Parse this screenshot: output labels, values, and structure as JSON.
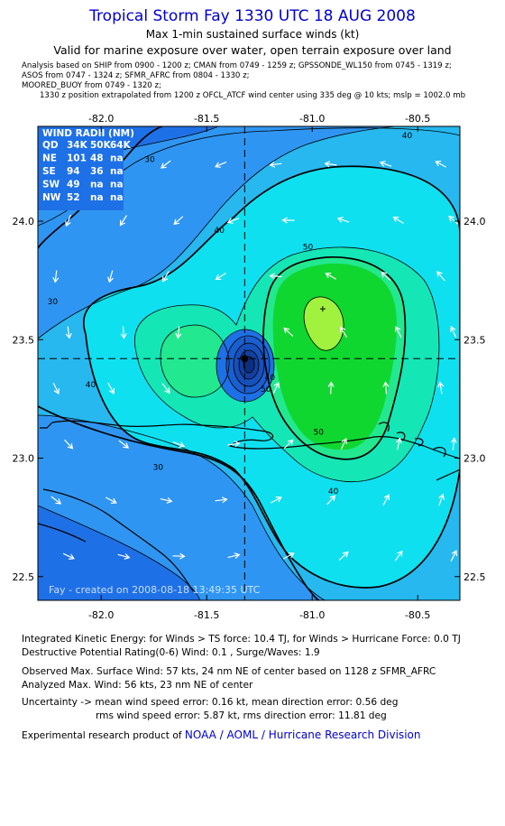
{
  "header": {
    "title": "Tropical Storm Fay 1330 UTC 18 AUG 2008",
    "subtitle": "Max 1-min sustained surface winds (kt)",
    "valid_for": "Valid for marine exposure over water, open terrain exposure over land",
    "analysis_line1": "Analysis based on  SHIP from 0900 - 1200 z;  CMAN from 0749 - 1259 z;  GPSSONDE_WL150 from 0745 - 1319 z;",
    "analysis_line2": "ASOS from 0747 - 1324 z;  SFMR_AFRC from 0804 - 1330 z;",
    "analysis_line3": "MOORED_BUOY from 0749 - 1320 z;",
    "position_note": "1330 z position extrapolated from 1200 z OFCL_ATCF wind center using 335 deg @ 10 kts; mslp = 1002.0 mb"
  },
  "wind_radii": {
    "title": "WIND RADII (NM)",
    "header": [
      "QD",
      "34K",
      "50K",
      "64K"
    ],
    "rows": [
      [
        "NE",
        "101",
        "48",
        "na"
      ],
      [
        "SE",
        "94",
        "36",
        "na"
      ],
      [
        "SW",
        "49",
        "na",
        "na"
      ],
      [
        "NW",
        "52",
        "na",
        "na"
      ]
    ]
  },
  "watermark": "Fay - created on 2008-08-18 13:49:35 UTC",
  "chart_data": {
    "type": "contour",
    "x_ticks": [
      "-82.0",
      "-81.5",
      "-81.0",
      "-80.5"
    ],
    "y_ticks": [
      "24.0",
      "23.5",
      "23.0",
      "22.5"
    ],
    "x_range": [
      -82.3,
      -80.3
    ],
    "y_range": [
      22.4,
      24.4
    ],
    "center": {
      "lon": -81.32,
      "lat": 23.42
    },
    "max_wind_marker": {
      "lon": -80.95,
      "lat": 23.63
    },
    "contour_levels": [
      {
        "label": "30",
        "lon": -81.77,
        "lat": 24.25
      },
      {
        "label": "30",
        "lon": -82.23,
        "lat": 23.65
      },
      {
        "label": "30",
        "lon": -81.73,
        "lat": 22.95
      },
      {
        "label": "40",
        "lon": -81.44,
        "lat": 23.95
      },
      {
        "label": "40",
        "lon": -82.05,
        "lat": 23.3
      },
      {
        "label": "40",
        "lon": -80.55,
        "lat": 24.35
      },
      {
        "label": "40",
        "lon": -80.9,
        "lat": 22.85
      },
      {
        "label": "40",
        "lon": -81.2,
        "lat": 23.33
      },
      {
        "label": "50",
        "lon": -81.02,
        "lat": 23.88
      },
      {
        "label": "50",
        "lon": -80.97,
        "lat": 23.1
      },
      {
        "label": "50",
        "lon": -81.22,
        "lat": 23.28
      }
    ],
    "colors": {
      "c20": "#1e70e6",
      "c30": "#2f95f2",
      "c35": "#26b8ee",
      "c40": "#0fe0f0",
      "c45": "#14e6b6",
      "c50": "#22e890",
      "c55": "#10d730",
      "c60": "#a0f23e",
      "core": "#123fa0"
    }
  },
  "footer": {
    "ike": "Integrated Kinetic Energy:  for Winds > TS force: 10.4 TJ,  for Winds > Hurricane Force: 0.0 TJ",
    "dpr": "Destructive Potential Rating(0-6)   Wind: 0.1 , Surge/Waves: 1.9",
    "observed": "Observed Max. Surface Wind: 57 kts, 24 nm NE of center based on 1128 z SFMR_AFRC",
    "analyzed": "Analyzed Max. Wind: 56 kts, 23 nm NE of center",
    "uncert1": "Uncertainty -> mean wind speed error: 0.16 kt,   mean direction error: 0.56 deg",
    "uncert2": "rms wind speed error: 5.87 kt,   rms direction error: 11.81 deg",
    "product_prefix": "Experimental research product of ",
    "product_org": "NOAA / AOML / Hurricane Research Division"
  }
}
